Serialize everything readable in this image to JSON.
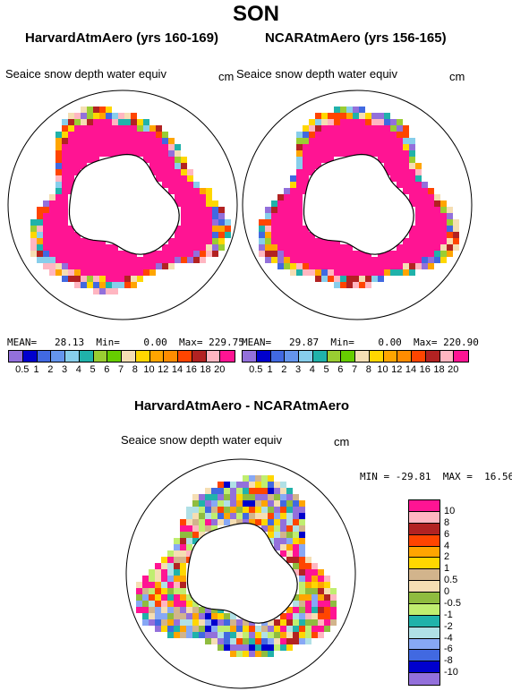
{
  "title": "SON",
  "panels": [
    {
      "title": "HarvardAtmAero (yrs 160-169)",
      "subtitle": "Seaice snow depth water equiv",
      "units": "cm",
      "stats": "MEAN=   28.13  Min=    0.00  Max= 229.75"
    },
    {
      "title": "NCARAtmAero (yrs 156-165)",
      "subtitle": "Seaice snow depth water equiv",
      "units": "cm",
      "stats": "MEAN=   29.87  Min=    0.00  Max= 220.90"
    }
  ],
  "colorbar_top": {
    "labels": [
      "0.5",
      "1",
      "2",
      "3",
      "4",
      "5",
      "6",
      "7",
      "8",
      "10",
      "12",
      "14",
      "16",
      "18",
      "20"
    ],
    "colors": [
      "#9370DB",
      "#0000CD",
      "#4169E1",
      "#6495ED",
      "#87CEEB",
      "#20B2AA",
      "#9ACD32",
      "#66CD00",
      "#F5DEB3",
      "#FFD700",
      "#FFA500",
      "#FF8C00",
      "#FF4500",
      "#B22222",
      "#FFB6C1",
      "#FF1493"
    ]
  },
  "diff": {
    "title": "HarvardAtmAero - NCARAtmAero",
    "subtitle": "Seaice snow depth water equiv",
    "units": "cm",
    "stats": "MIN = -29.81  MAX =  16.56"
  },
  "colorbar_diff": {
    "labels": [
      "10",
      "8",
      "6",
      "4",
      "2",
      "1",
      "0.5",
      "0",
      "-0.5",
      "-1",
      "-2",
      "-4",
      "-6",
      "-8",
      "-10"
    ],
    "colors": [
      "#FF1493",
      "#FFB6C1",
      "#B22222",
      "#FF4500",
      "#FFA500",
      "#FFD700",
      "#D2B48C",
      "#F5DEB3",
      "#8FBC3F",
      "#C0EE70",
      "#20B2AA",
      "#B0E0E6",
      "#87A8F5",
      "#4169E1",
      "#0000CD",
      "#9370DB"
    ]
  }
}
